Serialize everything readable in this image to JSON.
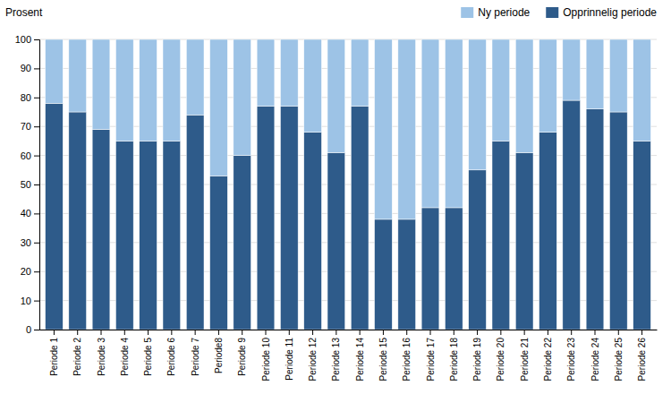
{
  "chart_data": {
    "type": "bar",
    "stacked": true,
    "ylabel": "Prosent",
    "categories": [
      "Periode 1",
      "Periode 2",
      "Periode 3",
      "Periode 4",
      "Periode 5",
      "Periode 6",
      "Periode 7",
      "Periode8",
      "Periode 9",
      "Periode 10",
      "Periode 11",
      "Periode 12",
      "Periode 13",
      "Periode 14",
      "Periode 15",
      "Periode 16",
      "Periode 17",
      "Periode 18",
      "Periode 19",
      "Periode 20",
      "Periode 21",
      "Periode 22",
      "Periode 23",
      "Periode 24",
      "Periode 25",
      "Periode 26"
    ],
    "series": [
      {
        "name": "Opprinnelig periode",
        "color": "#2E5B8A",
        "values": [
          78,
          75,
          69,
          65,
          65,
          65,
          74,
          53,
          60,
          77,
          77,
          68,
          61,
          77,
          38,
          38,
          42,
          42,
          55,
          65,
          61,
          68,
          79,
          76,
          75,
          65
        ]
      },
      {
        "name": "Ny periode",
        "color": "#9DC3E6",
        "values": [
          22,
          25,
          31,
          35,
          35,
          35,
          26,
          47,
          40,
          23,
          23,
          32,
          39,
          23,
          62,
          62,
          58,
          58,
          45,
          35,
          39,
          32,
          21,
          24,
          25,
          35
        ]
      }
    ],
    "ylim": [
      0,
      100
    ],
    "yticks": [
      0,
      10,
      20,
      30,
      40,
      50,
      60,
      70,
      80,
      90,
      100
    ],
    "grid": true,
    "legend": "upper right"
  }
}
